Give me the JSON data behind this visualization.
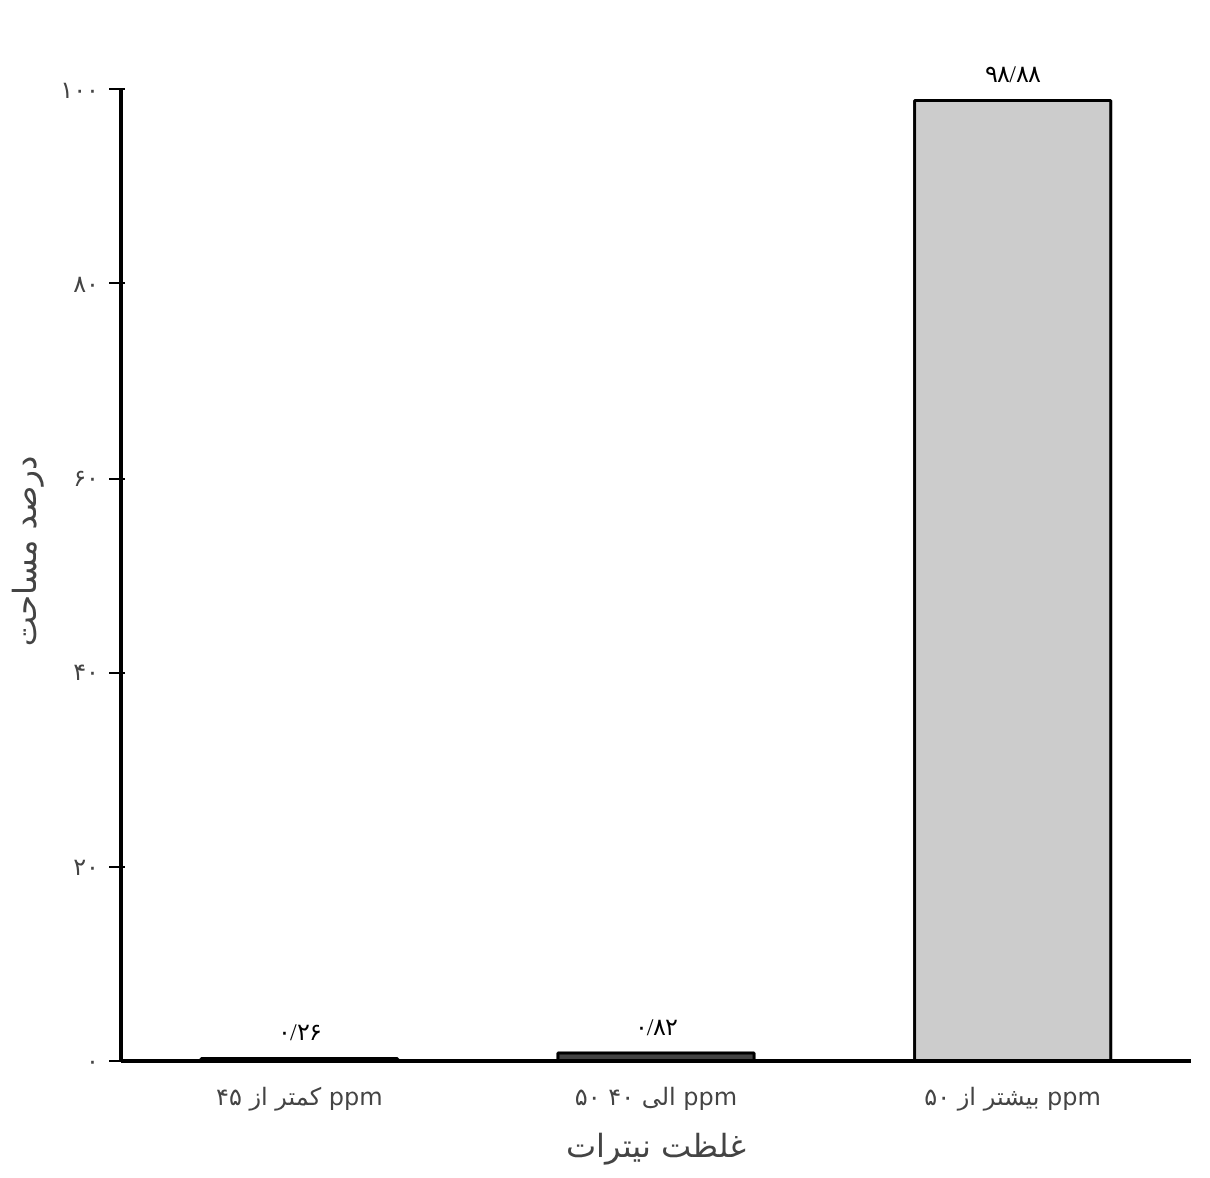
{
  "chart_data": {
    "type": "bar",
    "xlabel": "غلظت نیترات",
    "ylabel": "درصد مساحت",
    "categories": [
      "کمتر از ۴۵ ppm",
      "۵۰ الی ۴۰ ppm",
      "بیشتر از ۵۰ ppm"
    ],
    "values": [
      0.26,
      0.82,
      98.88
    ],
    "colors": [
      "#111111",
      "#444444",
      "#cccccc"
    ],
    "value_labels": [
      "۰/۲۶",
      "۰/۸۲",
      "۹۸/۸۸"
    ],
    "ylim": [
      0,
      100
    ],
    "yticks": [
      {
        "value": 0,
        "label": "۰"
      },
      {
        "value": 20,
        "label": "۲۰"
      },
      {
        "value": 40,
        "label": "۴۰"
      },
      {
        "value": 60,
        "label": "۶۰"
      },
      {
        "value": 80,
        "label": "۸۰"
      },
      {
        "value": 100,
        "label": "۱۰۰"
      }
    ],
    "grid": false
  }
}
